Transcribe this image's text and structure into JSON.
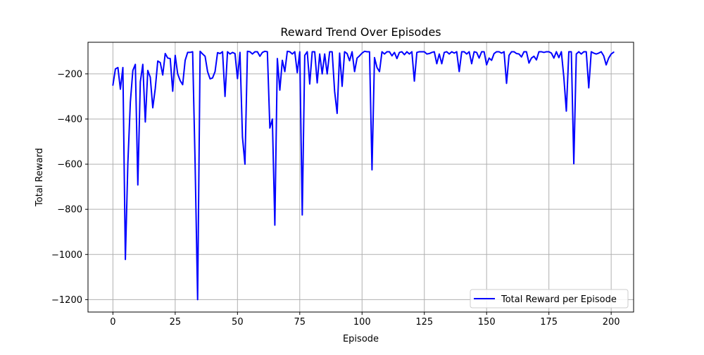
{
  "chart_data": {
    "type": "line",
    "title": "Reward Trend Over Episodes",
    "xlabel": "Episode",
    "ylabel": "Total Reward",
    "xlim": [
      -10,
      209
    ],
    "ylim": [
      -1255,
      -60
    ],
    "xticks": [
      0,
      25,
      50,
      75,
      100,
      125,
      150,
      175,
      200
    ],
    "yticks": [
      -1200,
      -1000,
      -800,
      -600,
      -400,
      -200
    ],
    "ytick_labels": [
      "−1200",
      "−1000",
      "−800",
      "−600",
      "−400",
      "−200"
    ],
    "grid": true,
    "legend_position": "lower-right",
    "series": [
      {
        "name": "Total Reward per Episode",
        "color": "#0000ff",
        "x_start": 0,
        "x_step": 1,
        "values": [
          -250,
          -178,
          -172,
          -268,
          -172,
          -1022,
          -595,
          -325,
          -185,
          -158,
          -692,
          -235,
          -158,
          -413,
          -185,
          -215,
          -350,
          -265,
          -143,
          -150,
          -205,
          -110,
          -130,
          -132,
          -277,
          -118,
          -200,
          -230,
          -248,
          -140,
          -105,
          -105,
          -102,
          -600,
          -1200,
          -100,
          -112,
          -122,
          -190,
          -222,
          -218,
          -190,
          -106,
          -110,
          -102,
          -300,
          -102,
          -112,
          -105,
          -110,
          -221,
          -105,
          -480,
          -600,
          -100,
          -102,
          -112,
          -102,
          -102,
          -122,
          -105,
          -100,
          -102,
          -440,
          -400,
          -870,
          -132,
          -272,
          -140,
          -190,
          -100,
          -102,
          -112,
          -102,
          -195,
          -102,
          -825,
          -118,
          -102,
          -245,
          -102,
          -102,
          -240,
          -112,
          -200,
          -112,
          -200,
          -102,
          -102,
          -278,
          -375,
          -108,
          -255,
          -102,
          -110,
          -142,
          -102,
          -190,
          -130,
          -120,
          -108,
          -100,
          -102,
          -102,
          -625,
          -128,
          -172,
          -190,
          -102,
          -112,
          -102,
          -102,
          -120,
          -105,
          -132,
          -105,
          -102,
          -115,
          -102,
          -112,
          -102,
          -232,
          -105,
          -102,
          -102,
          -102,
          -112,
          -110,
          -105,
          -102,
          -155,
          -112,
          -155,
          -105,
          -102,
          -112,
          -102,
          -108,
          -102,
          -190,
          -102,
          -102,
          -112,
          -102,
          -155,
          -102,
          -105,
          -130,
          -102,
          -102,
          -160,
          -130,
          -140,
          -110,
          -102,
          -102,
          -108,
          -102,
          -242,
          -118,
          -102,
          -102,
          -110,
          -112,
          -125,
          -102,
          -102,
          -152,
          -130,
          -122,
          -138,
          -102,
          -102,
          -105,
          -102,
          -102,
          -108,
          -130,
          -102,
          -128,
          -102,
          -215,
          -365,
          -102,
          -102,
          -598,
          -112,
          -102,
          -112,
          -102,
          -102,
          -262,
          -102,
          -108,
          -112,
          -108,
          -102,
          -120,
          -160,
          -130,
          -112,
          -104
        ]
      }
    ]
  }
}
